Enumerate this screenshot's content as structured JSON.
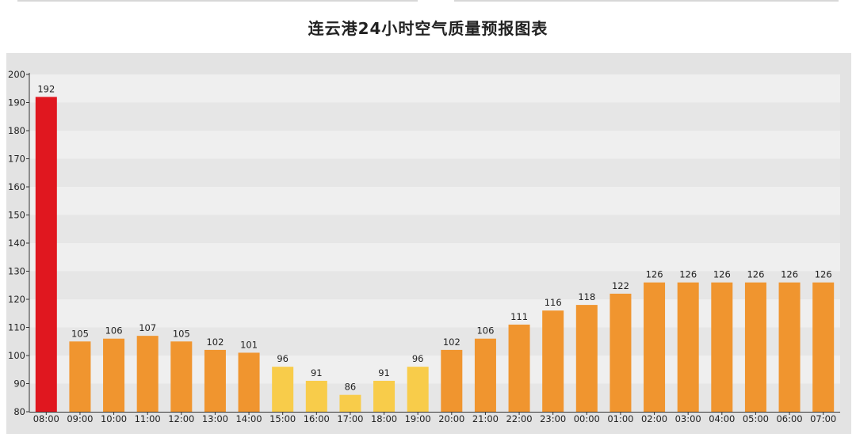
{
  "header": {
    "title": "连云港24小时空气质量预报图表"
  },
  "chart_data": {
    "type": "bar",
    "title": "连云港24小时空气质量预报图表",
    "xlabel": "",
    "ylabel": "",
    "ylim": [
      80,
      200
    ],
    "yticks": [
      80,
      90,
      100,
      110,
      120,
      130,
      140,
      150,
      160,
      170,
      180,
      190,
      200
    ],
    "grid": false,
    "legend": "none",
    "categories": [
      "08:00",
      "09:00",
      "10:00",
      "11:00",
      "12:00",
      "13:00",
      "14:00",
      "15:00",
      "16:00",
      "17:00",
      "18:00",
      "19:00",
      "20:00",
      "21:00",
      "22:00",
      "23:00",
      "00:00",
      "01:00",
      "02:00",
      "03:00",
      "04:00",
      "05:00",
      "06:00",
      "07:00"
    ],
    "values": [
      192,
      105,
      106,
      107,
      105,
      102,
      101,
      96,
      91,
      86,
      91,
      96,
      102,
      106,
      111,
      116,
      118,
      122,
      126,
      126,
      126,
      126,
      126,
      126
    ],
    "colors": {
      "red": "#e0171f",
      "orange": "#f0952f",
      "yellow": "#f8cc4a"
    },
    "bar_colors": [
      "red",
      "orange",
      "orange",
      "orange",
      "orange",
      "orange",
      "orange",
      "yellow",
      "yellow",
      "yellow",
      "yellow",
      "yellow",
      "orange",
      "orange",
      "orange",
      "orange",
      "orange",
      "orange",
      "orange",
      "orange",
      "orange",
      "orange",
      "orange",
      "orange"
    ]
  }
}
